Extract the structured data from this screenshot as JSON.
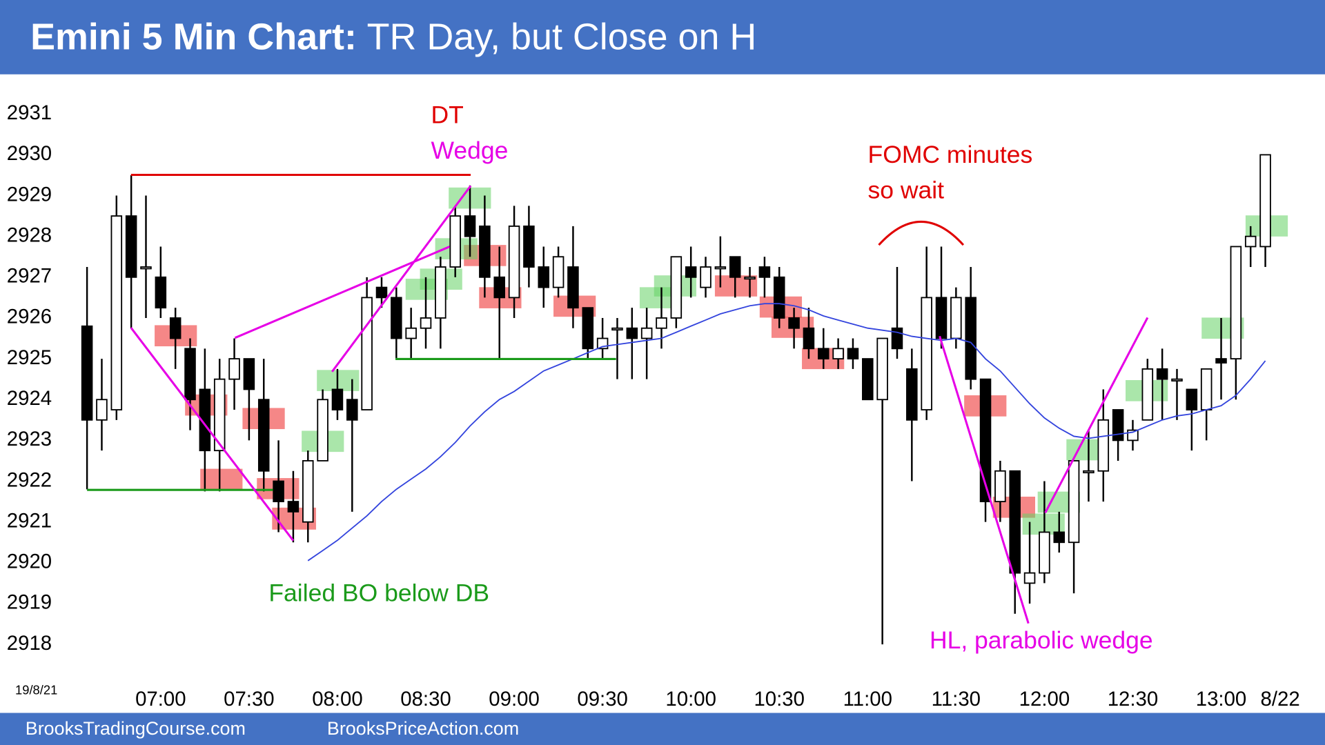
{
  "chart_data": {
    "type": "candlestick",
    "title": "Emini 5 Min Chart:",
    "subtitle": "TR Day, but Close on H",
    "corner_label": "19/8/21",
    "date_label": "8/22",
    "footer": [
      "BrooksTradingCourse.com",
      "BrooksPriceAction.com"
    ],
    "annotations": [
      "DT",
      "Wedge",
      "FOMC minutes",
      "so wait",
      "Failed BO below DB",
      "HL, parabolic wedge"
    ],
    "categories": [
      null,
      null,
      null,
      null,
      null,
      "07:00",
      null,
      null,
      null,
      null,
      null,
      "07:30",
      null,
      null,
      null,
      null,
      null,
      "08:00",
      null,
      null,
      null,
      null,
      null,
      "08:30",
      null,
      null,
      null,
      null,
      null,
      "09:00",
      null,
      null,
      null,
      null,
      null,
      "09:30",
      null,
      null,
      null,
      null,
      null,
      "10:00",
      null,
      null,
      null,
      null,
      null,
      "10:30",
      null,
      null,
      null,
      null,
      null,
      "11:00",
      null,
      null,
      null,
      null,
      null,
      "11:30",
      null,
      null,
      null,
      null,
      null,
      "12:00",
      null,
      null,
      null,
      null,
      null,
      "12:30",
      null,
      null,
      null,
      null,
      null,
      "13:00",
      null,
      null,
      null
    ],
    "open": [
      2925.8,
      2923.5,
      2923.75,
      2928.5,
      2927.25,
      2927,
      2926,
      2925.25,
      2924.25,
      2922.75,
      2924.5,
      2925,
      2924,
      2922,
      2921.5,
      2921,
      2922.5,
      2924.25,
      2924,
      2923.75,
      2926.75,
      2926.5,
      2925.5,
      2925.75,
      2926,
      2927.25,
      2928.5,
      2928.25,
      2927,
      2926.5,
      2928.25,
      2927.25,
      2926.75,
      2927.25,
      2926.25,
      2925.25,
      2925.75,
      2925.75,
      2925.5,
      2925.75,
      2926,
      2927.25,
      2926.75,
      2927.25,
      2927.5,
      2927,
      2927.25,
      2927,
      2926,
      2925.75,
      2925.25,
      2925,
      2925.25,
      2925,
      2924,
      2925.75,
      2924.75,
      2923.75,
      2926.5,
      2925.5,
      2926.5,
      2924.5,
      2921.5,
      2922.25,
      2919.5,
      2919.75,
      2920.75,
      2920.5,
      2922.25,
      2922.25,
      2923.75,
      2923,
      2923.5,
      2924.75,
      2924.5,
      2924.25,
      2923.75,
      2925,
      2925,
      2927.75,
      2927.75
    ],
    "high": [
      2927.25,
      2925,
      2929,
      2929.5,
      2929,
      2927.75,
      2926.25,
      2925.5,
      2925.25,
      2925,
      2925.5,
      2925,
      2925,
      2923,
      2922.25,
      2922.75,
      2924.25,
      2924.75,
      2924.5,
      2927,
      2927,
      2926.75,
      2926.25,
      2927,
      2927.5,
      2928.75,
      2929.25,
      2929,
      2927.75,
      2928.75,
      2928.75,
      2927.75,
      2927.75,
      2928.25,
      2926.25,
      2926,
      2926,
      2926.25,
      2926.25,
      2926.75,
      2927.5,
      2927.75,
      2927.5,
      2928,
      2927.5,
      2927.25,
      2927.5,
      2927.25,
      2926.25,
      2926.25,
      2925.75,
      2925.5,
      2925.5,
      2925,
      2925.5,
      2927.25,
      2925.25,
      2927.75,
      2927.75,
      2926.75,
      2927.25,
      2924.5,
      2922.5,
      2922.25,
      2921,
      2922,
      2921.25,
      2922.5,
      2923.25,
      2924.25,
      2923.75,
      2923.5,
      2925,
      2925.25,
      2924.75,
      2924.25,
      2924.75,
      2926,
      2927.75,
      2928.25,
      2930
    ],
    "low": [
      2921.8,
      2922.75,
      2923.5,
      2925.75,
      2926,
      2926,
      2924.75,
      2923.25,
      2921.75,
      2921.75,
      2923.75,
      2923,
      2921.75,
      2920.75,
      2920.5,
      2920.5,
      2922.5,
      2923.5,
      2921.25,
      2923.75,
      2926.25,
      2925,
      2925,
      2925.25,
      2925.25,
      2927,
      2927.5,
      2926.5,
      2925,
      2926,
      2926.75,
      2926.25,
      2926.5,
      2925.75,
      2925,
      2925,
      2924.5,
      2924.5,
      2924.5,
      2925.25,
      2925.75,
      2926.5,
      2926.5,
      2926.75,
      2926.5,
      2926.5,
      2926.5,
      2925.75,
      2925.25,
      2925,
      2924.75,
      2924.75,
      2924.75,
      2924,
      2918,
      2925,
      2922,
      2923.5,
      2925.25,
      2925.25,
      2924.25,
      2921,
      2921,
      2918.75,
      2919,
      2919.5,
      2920.25,
      2919.25,
      2921.5,
      2921.5,
      2922.5,
      2922.75,
      2923.5,
      2923.5,
      2923.5,
      2922.75,
      2923,
      2924,
      2924,
      2927.25,
      2927.25
    ],
    "close": [
      2923.5,
      2924,
      2928.5,
      2927,
      2927.25,
      2926.25,
      2925.5,
      2924,
      2922.75,
      2924.5,
      2925,
      2924.25,
      2922.25,
      2921.5,
      2921.25,
      2922.5,
      2924,
      2923.75,
      2923.5,
      2926.5,
      2926.5,
      2925.5,
      2925.75,
      2926,
      2927.25,
      2928.5,
      2928,
      2927,
      2926.5,
      2928.25,
      2927.25,
      2926.75,
      2927.5,
      2926.25,
      2925.25,
      2925.5,
      2925.75,
      2925.5,
      2925.75,
      2926,
      2927.5,
      2927,
      2927.25,
      2927.25,
      2927,
      2927,
      2927,
      2926,
      2925.75,
      2925.25,
      2925,
      2925.25,
      2925,
      2924,
      2925.5,
      2925.25,
      2923.5,
      2926.5,
      2925.5,
      2926.5,
      2924.5,
      2921.5,
      2922.25,
      2919.75,
      2919.75,
      2920.75,
      2920.5,
      2922.5,
      2922.25,
      2923.5,
      2923,
      2923.25,
      2924.75,
      2924.5,
      2924.5,
      2923.75,
      2924.75,
      2924.9,
      2927.75,
      2928,
      2930
    ],
    "ema": [
      null,
      null,
      null,
      null,
      null,
      null,
      null,
      null,
      null,
      null,
      null,
      null,
      null,
      null,
      null,
      2920.05,
      2920.3,
      2920.55,
      2920.85,
      2921.15,
      2921.5,
      2921.8,
      2922.05,
      2922.3,
      2922.6,
      2922.95,
      2923.35,
      2923.7,
      2924,
      2924.2,
      2924.45,
      2924.7,
      2924.85,
      2925,
      2925.15,
      2925.3,
      2925.35,
      2925.4,
      2925.45,
      2925.5,
      2925.65,
      2925.8,
      2925.95,
      2926.1,
      2926.2,
      2926.3,
      2926.35,
      2926.35,
      2926.3,
      2926.2,
      2926.05,
      2925.95,
      2925.85,
      2925.75,
      2925.7,
      2925.65,
      2925.55,
      2925.5,
      2925.45,
      2925.5,
      2925.4,
      2925,
      2924.7,
      2924.3,
      2923.9,
      2923.55,
      2923.3,
      2923.1,
      2923.05,
      2923.1,
      2923.15,
      2923.2,
      2923.35,
      2923.5,
      2923.6,
      2923.65,
      2923.75,
      2923.85,
      2924.1,
      2924.5,
      2924.95
    ],
    "ema_color": "#3344dd",
    "up_color": "#ffffff",
    "down_color": "#000000",
    "ylim": [
      2917.5,
      2931.5
    ],
    "yticks": [
      2918,
      2919,
      2920,
      2921,
      2922,
      2923,
      2924,
      2925,
      2926,
      2927,
      2928,
      2929,
      2930,
      2931
    ]
  }
}
